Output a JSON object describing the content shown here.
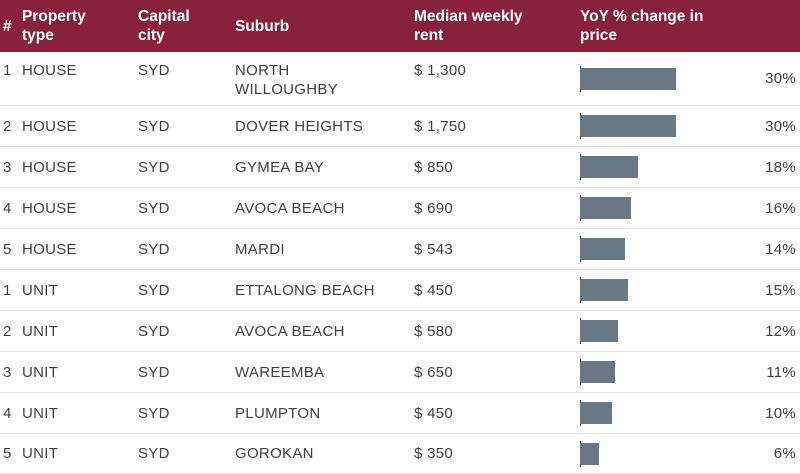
{
  "header": {
    "rank": "#",
    "property_type": [
      "Property",
      "type"
    ],
    "capital_city": [
      "Capital",
      "city"
    ],
    "suburb": "Suburb",
    "median_rent": [
      "Median weekly",
      "rent"
    ],
    "yoy_change": [
      "YoY % change in",
      "price"
    ]
  },
  "rows": [
    {
      "rank": "1",
      "type": "HOUSE",
      "city": "SYD",
      "suburb": [
        "NORTH",
        "WILLOUGHBY"
      ],
      "rent": "$ 1,300",
      "pct": "30%"
    },
    {
      "rank": "2",
      "type": "HOUSE",
      "city": "SYD",
      "suburb": [
        "DOVER HEIGHTS"
      ],
      "rent": "$ 1,750",
      "pct": "30%"
    },
    {
      "rank": "3",
      "type": "HOUSE",
      "city": "SYD",
      "suburb": [
        "GYMEA BAY"
      ],
      "rent": "$ 850",
      "pct": "18%"
    },
    {
      "rank": "4",
      "type": "HOUSE",
      "city": "SYD",
      "suburb": [
        "AVOCA BEACH"
      ],
      "rent": "$ 690",
      "pct": "16%"
    },
    {
      "rank": "5",
      "type": "HOUSE",
      "city": "SYD",
      "suburb": [
        "MARDI"
      ],
      "rent": "$ 543",
      "pct": "14%"
    },
    {
      "rank": "1",
      "type": "UNIT",
      "city": "SYD",
      "suburb": [
        "ETTALONG BEACH"
      ],
      "rent": "$ 450",
      "pct": "15%"
    },
    {
      "rank": "2",
      "type": "UNIT",
      "city": "SYD",
      "suburb": [
        "AVOCA BEACH"
      ],
      "rent": "$ 580",
      "pct": "12%"
    },
    {
      "rank": "3",
      "type": "UNIT",
      "city": "SYD",
      "suburb": [
        "WAREEMBA"
      ],
      "rent": "$ 650",
      "pct": "11%"
    },
    {
      "rank": "4",
      "type": "UNIT",
      "city": "SYD",
      "suburb": [
        "PLUMPTON"
      ],
      "rent": "$ 450",
      "pct": "10%"
    },
    {
      "rank": "5",
      "type": "UNIT",
      "city": "SYD",
      "suburb": [
        "GOROKAN"
      ],
      "rent": "$ 350",
      "pct": "6%"
    }
  ],
  "chart_data": {
    "type": "table",
    "columns": [
      "#",
      "Property type",
      "Capital city",
      "Suburb",
      "Median weekly rent",
      "YoY % change in price"
    ],
    "series": [
      {
        "values": [
          30,
          30,
          18,
          16,
          14,
          15,
          12,
          11,
          10,
          6
        ]
      }
    ],
    "bar_color": "#6a7784",
    "header_color": "#87223a"
  }
}
